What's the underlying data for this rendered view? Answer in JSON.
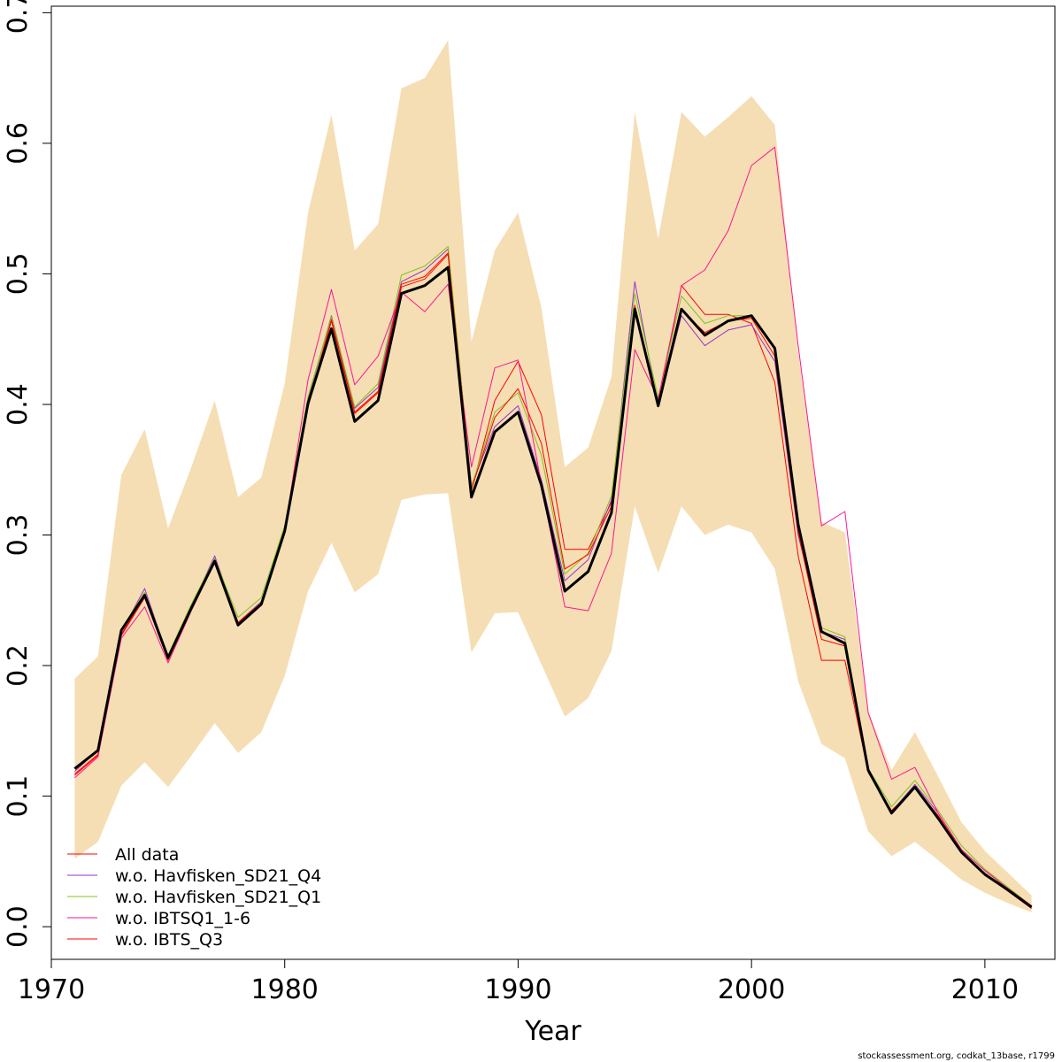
{
  "chart_data": {
    "type": "line",
    "title": "",
    "xlabel": "Year",
    "ylabel": "",
    "xlim": [
      1970,
      2013
    ],
    "ylim": [
      -0.025,
      0.705
    ],
    "x_ticks": [
      1970,
      1980,
      1990,
      2000,
      2010
    ],
    "y_ticks": [
      0.0,
      0.1,
      0.2,
      0.3,
      0.4,
      0.5,
      0.6,
      0.7
    ],
    "x_tick_labels": [
      "1970",
      "1980",
      "1990",
      "2000",
      "2010"
    ],
    "y_tick_labels": [
      "0.0",
      "0.1",
      "0.2",
      "0.3",
      "0.4",
      "0.5",
      "0.6",
      "0.7"
    ],
    "grid": false,
    "legend_position": "bottom-left",
    "x": [
      1971,
      1972,
      1973,
      1974,
      1975,
      1976,
      1977,
      1978,
      1979,
      1980,
      1981,
      1982,
      1983,
      1984,
      1985,
      1986,
      1987,
      1988,
      1989,
      1990,
      1991,
      1992,
      1993,
      1994,
      1995,
      1996,
      1997,
      1998,
      1999,
      2000,
      2001,
      2002,
      2003,
      2004,
      2005,
      2006,
      2007,
      2008,
      2009,
      2010,
      2011,
      2012
    ],
    "confidence_band": {
      "color": "#F5DEB3",
      "upper": [
        0.19,
        0.207,
        0.346,
        0.381,
        0.305,
        0.352,
        0.403,
        0.329,
        0.344,
        0.416,
        0.547,
        0.622,
        0.518,
        0.538,
        0.642,
        0.65,
        0.679,
        0.448,
        0.518,
        0.547,
        0.474,
        0.352,
        0.367,
        0.421,
        0.624,
        0.527,
        0.624,
        0.605,
        0.62,
        0.636,
        0.614,
        0.44,
        0.31,
        0.302,
        0.165,
        0.12,
        0.149,
        0.115,
        0.08,
        0.058,
        0.041,
        0.024
      ],
      "lower": [
        0.052,
        0.065,
        0.108,
        0.126,
        0.107,
        0.131,
        0.156,
        0.133,
        0.149,
        0.192,
        0.257,
        0.294,
        0.256,
        0.27,
        0.327,
        0.331,
        0.332,
        0.21,
        0.24,
        0.241,
        0.201,
        0.161,
        0.175,
        0.211,
        0.322,
        0.271,
        0.322,
        0.3,
        0.308,
        0.302,
        0.274,
        0.188,
        0.14,
        0.129,
        0.073,
        0.054,
        0.065,
        0.051,
        0.036,
        0.026,
        0.018,
        0.011
      ]
    },
    "series": [
      {
        "name": "All data",
        "color": "#FF0000",
        "width": 1,
        "legend": true,
        "values": [
          0.116,
          0.131,
          0.223,
          0.252,
          0.205,
          0.244,
          0.279,
          0.232,
          0.248,
          0.302,
          0.398,
          0.464,
          0.393,
          0.409,
          0.49,
          0.496,
          0.515,
          0.334,
          0.403,
          0.433,
          0.392,
          0.289,
          0.289,
          0.325,
          0.474,
          0.399,
          0.491,
          0.469,
          0.469,
          0.462,
          0.417,
          0.284,
          0.204,
          0.204,
          0.118,
          0.089,
          0.107,
          0.085,
          0.057,
          0.041,
          0.028,
          0.014
        ]
      },
      {
        "name": "w.o. Havfisken_SD21_Q4",
        "color": "#9932CC",
        "width": 1,
        "legend": true,
        "values": [
          0.119,
          0.135,
          0.226,
          0.259,
          0.206,
          0.245,
          0.284,
          0.233,
          0.249,
          0.306,
          0.404,
          0.468,
          0.397,
          0.413,
          0.494,
          0.503,
          0.519,
          0.338,
          0.383,
          0.399,
          0.342,
          0.265,
          0.281,
          0.327,
          0.494,
          0.398,
          0.468,
          0.445,
          0.457,
          0.461,
          0.433,
          0.3,
          0.226,
          0.22,
          0.121,
          0.088,
          0.109,
          0.087,
          0.059,
          0.043,
          0.029,
          0.016
        ]
      },
      {
        "name": "w.o. Havfisken_SD21_Q1",
        "color": "#7FC41A",
        "width": 1,
        "legend": true,
        "values": [
          0.121,
          0.136,
          0.228,
          0.256,
          0.208,
          0.247,
          0.282,
          0.237,
          0.252,
          0.307,
          0.406,
          0.467,
          0.398,
          0.416,
          0.499,
          0.506,
          0.521,
          0.337,
          0.394,
          0.409,
          0.361,
          0.27,
          0.286,
          0.33,
          0.485,
          0.405,
          0.483,
          0.462,
          0.468,
          0.468,
          0.442,
          0.31,
          0.229,
          0.222,
          0.121,
          0.092,
          0.112,
          0.089,
          0.062,
          0.044,
          0.03,
          0.016
        ]
      },
      {
        "name": "w.o. IBTSQ1_1-6",
        "color": "#FF1493",
        "width": 1,
        "legend": true,
        "values": [
          0.114,
          0.13,
          0.221,
          0.245,
          0.202,
          0.242,
          0.279,
          0.231,
          0.247,
          0.303,
          0.419,
          0.488,
          0.415,
          0.437,
          0.486,
          0.471,
          0.492,
          0.352,
          0.428,
          0.434,
          0.339,
          0.245,
          0.242,
          0.286,
          0.442,
          0.404,
          0.491,
          0.503,
          0.533,
          0.583,
          0.597,
          0.445,
          0.307,
          0.318,
          0.164,
          0.113,
          0.122,
          0.087,
          0.059,
          0.043,
          0.029,
          0.016
        ]
      },
      {
        "name": "w.o. IBTS_Q3",
        "color": "#FF0000",
        "width": 1,
        "legend": true,
        "values": [
          0.117,
          0.132,
          0.224,
          0.253,
          0.204,
          0.243,
          0.28,
          0.233,
          0.248,
          0.304,
          0.4,
          0.465,
          0.394,
          0.41,
          0.492,
          0.498,
          0.516,
          0.335,
          0.39,
          0.412,
          0.37,
          0.274,
          0.285,
          0.322,
          0.476,
          0.4,
          0.472,
          0.455,
          0.464,
          0.466,
          0.437,
          0.302,
          0.22,
          0.215,
          0.119,
          0.088,
          0.106,
          0.085,
          0.058,
          0.04,
          0.027,
          0.014
        ]
      },
      {
        "name": "",
        "color": "#000000",
        "width": 3,
        "legend": false,
        "values": [
          0.121,
          0.135,
          0.227,
          0.254,
          0.206,
          0.244,
          0.28,
          0.231,
          0.247,
          0.303,
          0.401,
          0.458,
          0.387,
          0.403,
          0.485,
          0.491,
          0.505,
          0.329,
          0.379,
          0.394,
          0.338,
          0.257,
          0.272,
          0.317,
          0.473,
          0.399,
          0.473,
          0.453,
          0.464,
          0.468,
          0.443,
          0.308,
          0.226,
          0.217,
          0.12,
          0.087,
          0.107,
          0.083,
          0.057,
          0.04,
          0.028,
          0.015
        ]
      }
    ]
  },
  "credit": "stockassessment.org, codkat_13base, r1799"
}
